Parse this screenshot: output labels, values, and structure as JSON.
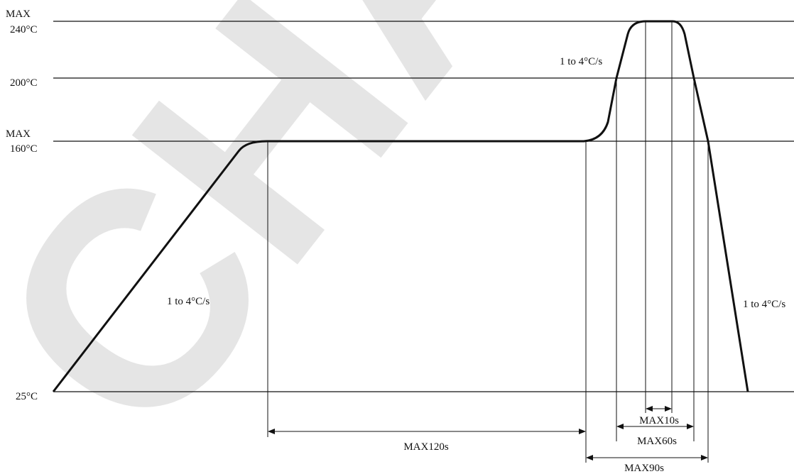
{
  "diagram": {
    "watermark": "CHAULU",
    "colors": {
      "line": "#111111",
      "watermark": "#d9d9d9",
      "background": "#ffffff"
    },
    "y_labels": {
      "max240": "MAX",
      "t240": "240°C",
      "t200": "200°C",
      "max160": "MAX",
      "t160": "160°C",
      "t25": "25°C"
    },
    "rates": {
      "ramp_up": "1 to 4°C/s",
      "ramp_to_peak": "1 to 4°C/s",
      "cool_down": "1 to 4°C/s"
    },
    "durations": {
      "soak": "MAX120s",
      "peak": "MAX10s",
      "above_200": "MAX60s",
      "above_160": "MAX90s"
    }
  }
}
